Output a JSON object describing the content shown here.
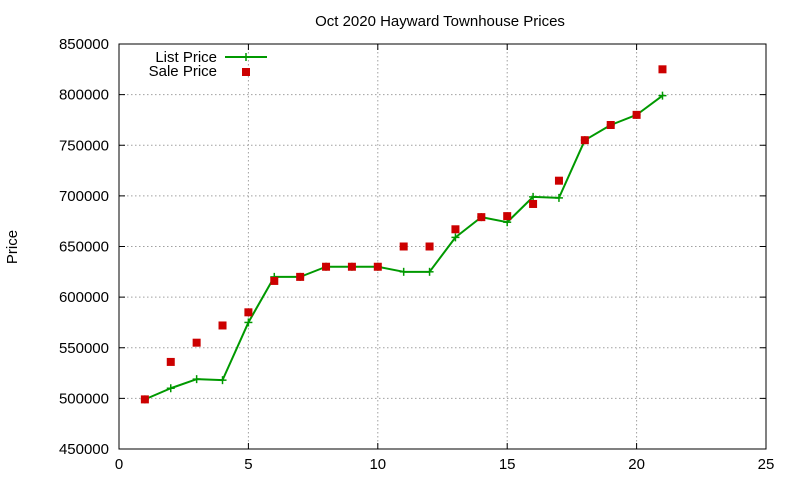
{
  "chart_data": {
    "type": "line",
    "title": "Oct 2020 Hayward Townhouse Prices",
    "xlabel": "",
    "ylabel": "Price",
    "xlim": [
      0,
      25
    ],
    "ylim": [
      450000,
      850000
    ],
    "xticks": [
      0,
      5,
      10,
      15,
      20,
      25
    ],
    "yticks": [
      450000,
      500000,
      550000,
      600000,
      650000,
      700000,
      750000,
      800000,
      850000
    ],
    "grid": true,
    "legend_position": "top-left",
    "series": [
      {
        "name": "List Price",
        "style": "line-plus",
        "color": "#009900",
        "x": [
          1,
          2,
          3,
          4,
          5,
          6,
          7,
          8,
          9,
          10,
          11,
          12,
          13,
          14,
          15,
          16,
          17,
          18,
          19,
          20,
          21
        ],
        "y": [
          499000,
          510000,
          519000,
          518000,
          575000,
          620000,
          620000,
          630000,
          630000,
          630000,
          625000,
          625000,
          659000,
          679000,
          674000,
          699000,
          698000,
          755000,
          770000,
          780000,
          799000
        ]
      },
      {
        "name": "Sale Price",
        "style": "square",
        "color": "#cc0000",
        "x": [
          1,
          2,
          3,
          4,
          5,
          6,
          7,
          8,
          9,
          10,
          11,
          12,
          13,
          14,
          15,
          16,
          17,
          18,
          19,
          20,
          21
        ],
        "y": [
          499000,
          536000,
          555000,
          572000,
          585000,
          616000,
          620000,
          630000,
          630000,
          630000,
          650000,
          650000,
          667000,
          679000,
          680000,
          692000,
          715000,
          755000,
          770000,
          780000,
          825000
        ]
      }
    ]
  }
}
